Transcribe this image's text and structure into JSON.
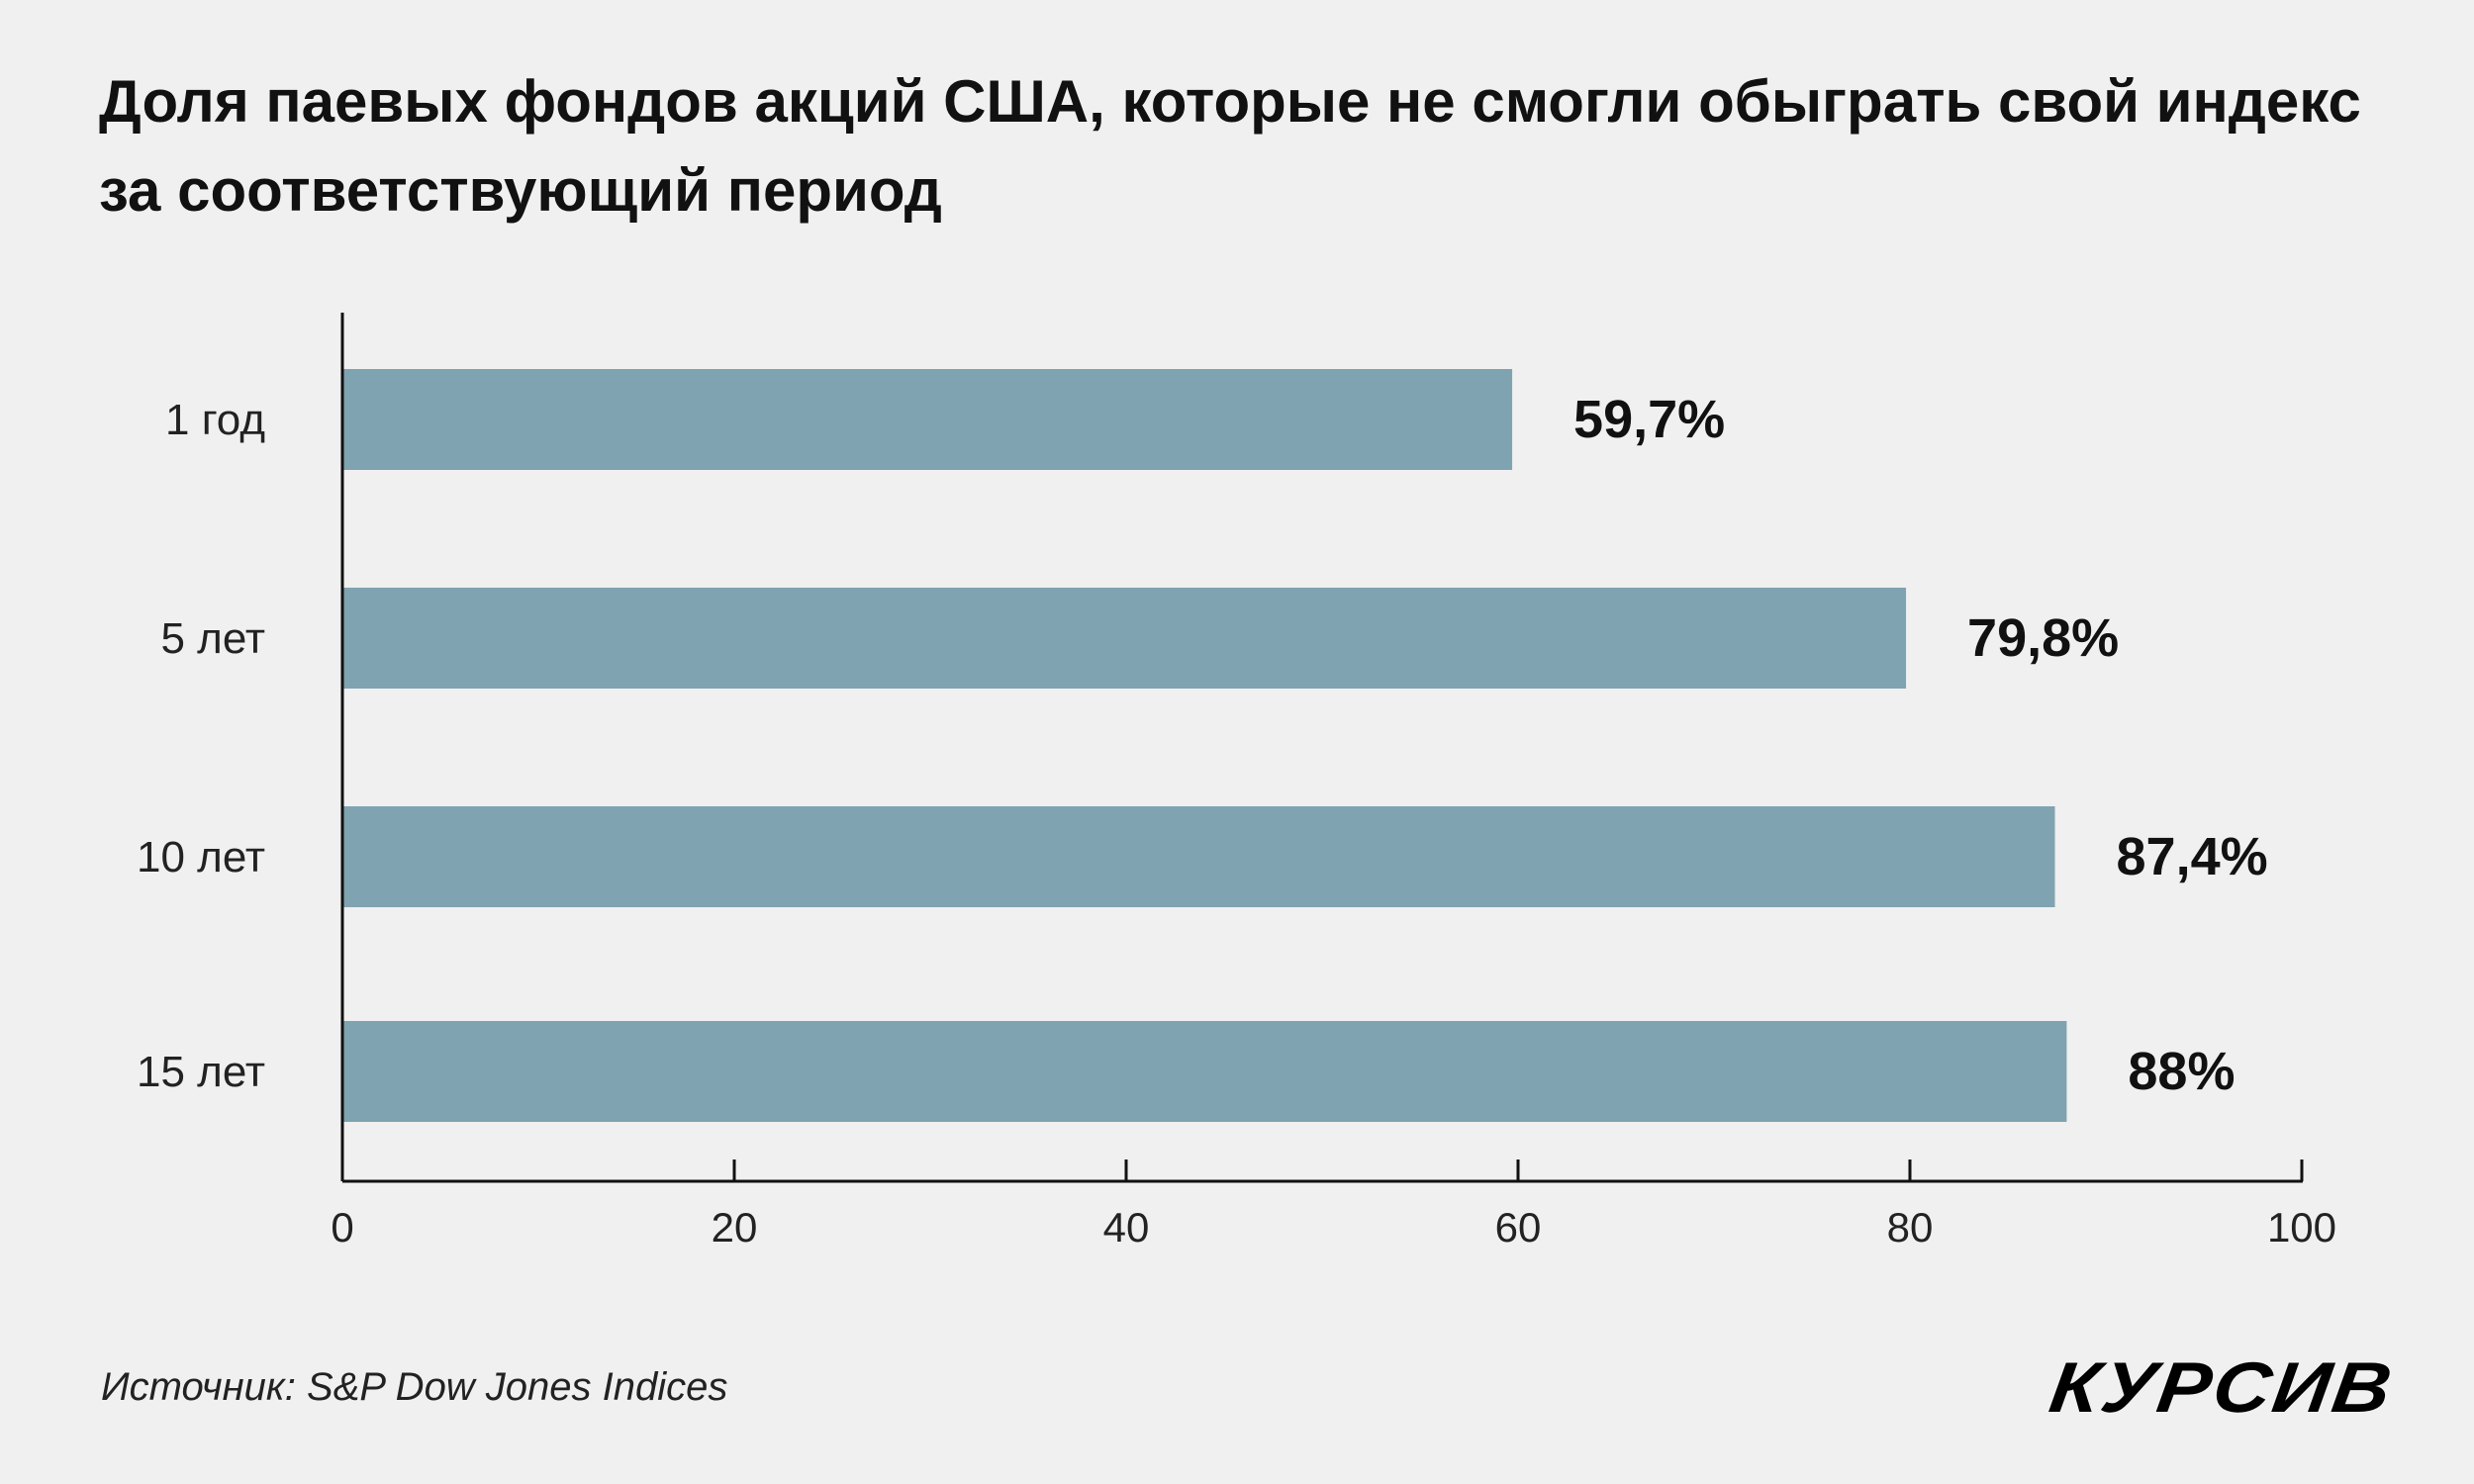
{
  "chart_data": {
    "type": "bar",
    "orientation": "horizontal",
    "title": "Доля паевых фондов акций США, которые не смогли обыграть свой индекс за соответствующий период",
    "categories": [
      "1 год",
      "5 лет",
      "10 лет",
      "15 лет"
    ],
    "values": [
      59.7,
      79.8,
      87.4,
      88
    ],
    "data_labels": [
      "59,7%",
      "79,8%",
      "87,4%",
      "88%"
    ],
    "xlabel": "",
    "ylabel": "",
    "xlim": [
      0,
      100
    ],
    "xticks": [
      "0",
      "20",
      "40",
      "60",
      "80",
      "100"
    ],
    "grid": false,
    "bar_color": "#7fa3b0"
  },
  "footer": {
    "source": "Источник: S&P Dow Jones Indices",
    "logo": "КУРСИВ"
  }
}
